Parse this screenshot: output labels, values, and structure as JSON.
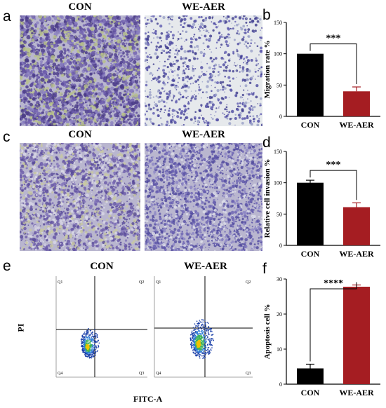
{
  "panel_labels": {
    "a": "a",
    "b": "b",
    "c": "c",
    "d": "d",
    "e": "e",
    "f": "f"
  },
  "micrographs": {
    "row1": {
      "left_title": "CON",
      "right_title": "WE-AER"
    },
    "row2": {
      "left_title": "CON",
      "right_title": "WE-AER"
    }
  },
  "flow": {
    "left_title": "CON",
    "right_title": "WE-AER",
    "ylabel": "PI",
    "xlabel": "FITC-A",
    "quadrants": [
      "Q1",
      "Q2",
      "Q3",
      "Q4"
    ]
  },
  "chart_data": [
    {
      "id": "b",
      "type": "bar",
      "categories": [
        "CON",
        "WE-AER"
      ],
      "values": [
        100,
        40
      ],
      "errors": [
        0,
        7
      ],
      "ylabel": "Migration rate %",
      "yticks": [
        "0",
        "50",
        "100",
        "150"
      ],
      "ylim": [
        0,
        150
      ],
      "significance": "***",
      "colors": [
        "#000000",
        "#a51d22"
      ]
    },
    {
      "id": "d",
      "type": "bar",
      "categories": [
        "CON",
        "WE-AER"
      ],
      "values": [
        100,
        61
      ],
      "errors": [
        4,
        7
      ],
      "ylabel": "Relative cell invasion %",
      "yticks": [
        "0",
        "50",
        "100",
        "150"
      ],
      "ylim": [
        0,
        150
      ],
      "significance": "***",
      "colors": [
        "#000000",
        "#a51d22"
      ]
    },
    {
      "id": "f",
      "type": "bar",
      "categories": [
        "CON",
        "WE-AER"
      ],
      "values": [
        4.5,
        27.8
      ],
      "errors": [
        1.2,
        0.5
      ],
      "ylabel": "Apoptosis cell %",
      "yticks": [
        "0",
        "10",
        "20",
        "30"
      ],
      "ylim": [
        0,
        30
      ],
      "significance": "****",
      "colors": [
        "#000000",
        "#a51d22"
      ]
    }
  ]
}
